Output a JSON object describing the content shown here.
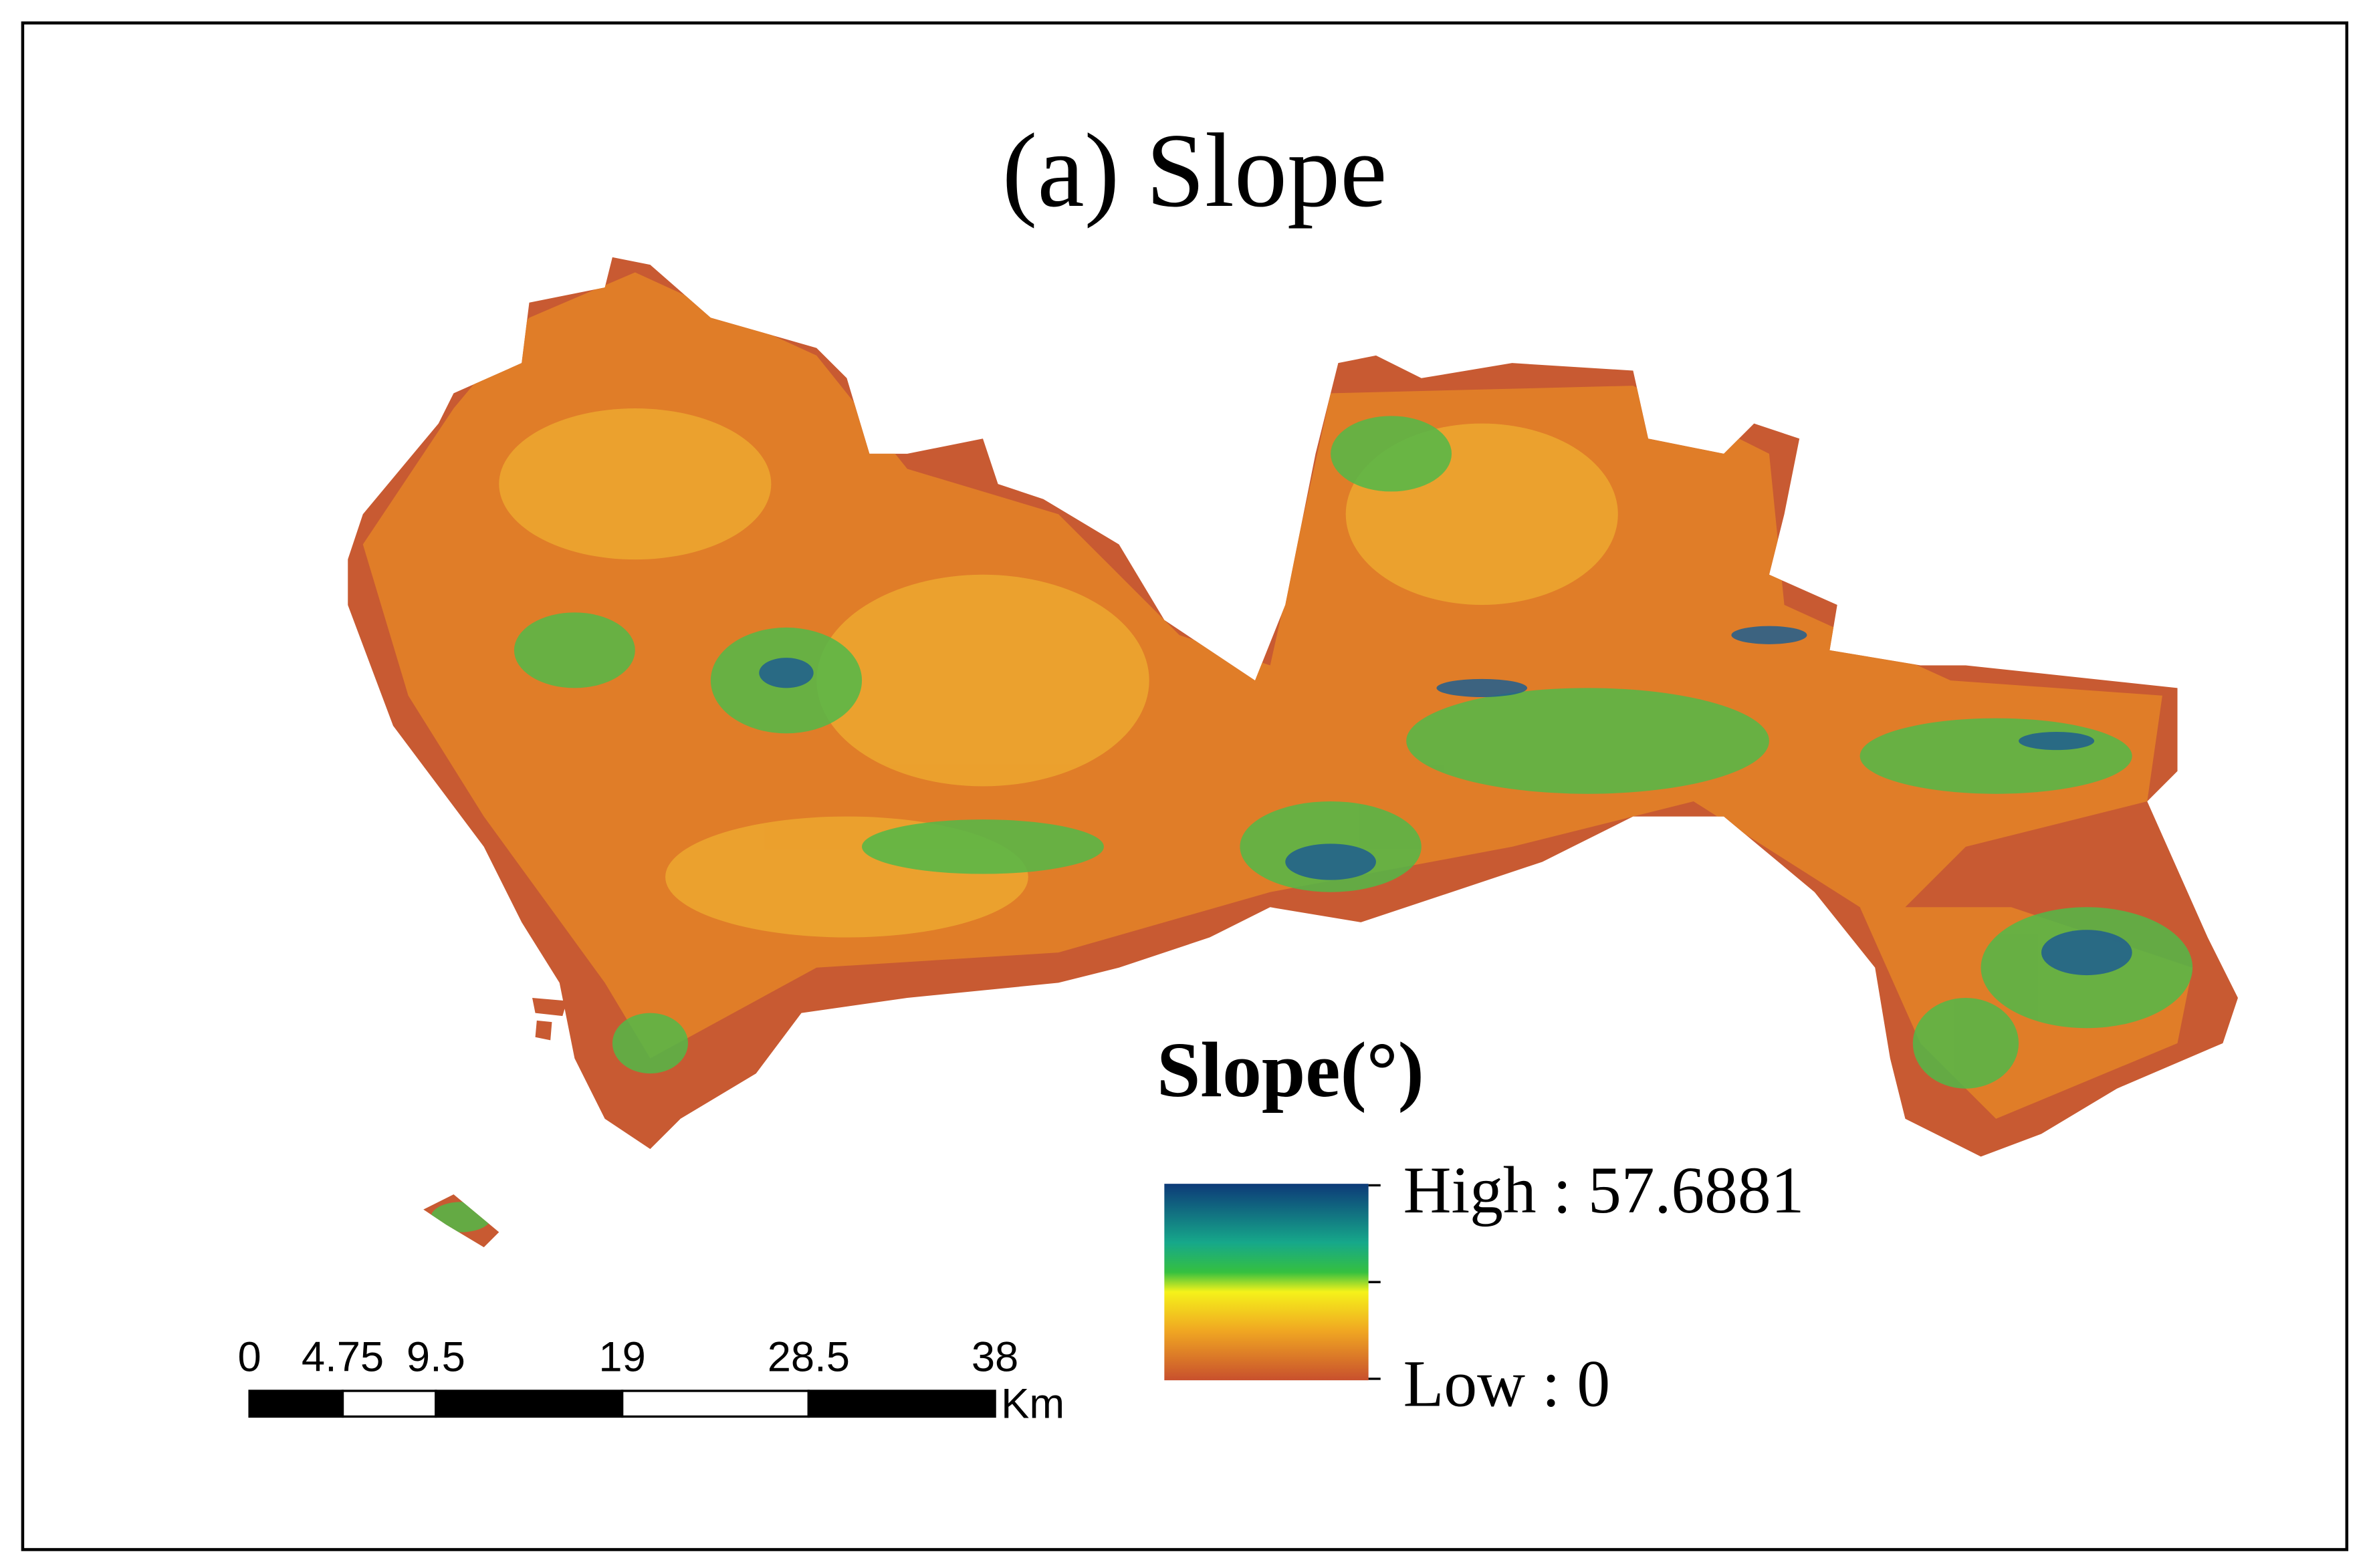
{
  "title": "(a) Slope",
  "legend": {
    "title": "Slope(°)",
    "high": "High : 57.6881",
    "low": "Low : 0"
  },
  "scale_bar": {
    "ticks": [
      0,
      4.75,
      9.5,
      19,
      28.5,
      38
    ],
    "unit": "Km"
  }
}
